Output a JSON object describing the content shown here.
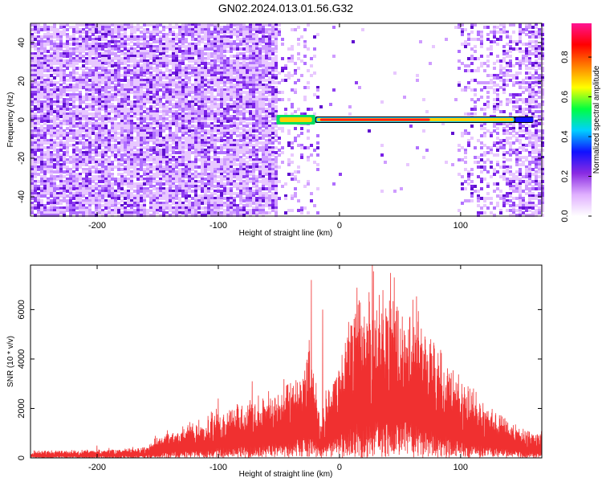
{
  "title": "GN02.2024.013.01.56.G32",
  "chart_data": [
    {
      "type": "heatmap",
      "xlabel": "Height of straight line (km)",
      "ylabel": "Frequency (Hz)",
      "xlim": [
        -255,
        167
      ],
      "ylim": [
        -50,
        50
      ],
      "x_ticks": [
        -200,
        -100,
        0,
        100
      ],
      "y_ticks": [
        -40,
        -20,
        0,
        20,
        40
      ],
      "colorbar": {
        "label": "Normalized spectral amplitude",
        "range": [
          0,
          0.97
        ],
        "ticks": [
          0.0,
          0.2,
          0.4,
          0.6,
          0.8
        ],
        "tick_labels": [
          "0.0",
          "0.2",
          "0.4",
          "0.6",
          "0.8"
        ],
        "colormap": [
          "#ffffff",
          "#e0b0ff",
          "#8a2be2",
          "#1010ff",
          "#00d0ff",
          "#00ff40",
          "#ffff00",
          "#ff8000",
          "#ff0000",
          "#ff1493"
        ]
      },
      "signal_band": {
        "frequency_hz": 0,
        "x_start": -52,
        "x_end": 160,
        "weak_segment": [
          -52,
          -20
        ],
        "strong_segment": [
          -20,
          145
        ]
      },
      "noise_regions": [
        {
          "x_start": -255,
          "x_end": -52,
          "level": "dense"
        },
        {
          "x_start": -52,
          "x_end": -18,
          "level": "sparse"
        },
        {
          "x_start": 95,
          "x_end": 167,
          "level": "moderate"
        }
      ]
    },
    {
      "type": "line",
      "xlabel": "Height of straight line (km)",
      "ylabel": "SNR (10 * v/v)",
      "xlim": [
        -255,
        167
      ],
      "ylim": [
        0,
        7800
      ],
      "x_ticks": [
        -200,
        -100,
        0,
        100
      ],
      "y_ticks": [
        0,
        2000,
        4000,
        6000
      ],
      "color": "#f03030",
      "envelope": {
        "x": [
          -255,
          -200,
          -160,
          -150,
          -120,
          -100,
          -80,
          -60,
          -50,
          -40,
          -30,
          -25,
          -20,
          -15,
          -10,
          0,
          10,
          20,
          30,
          40,
          50,
          60,
          70,
          80,
          90,
          100,
          110,
          120,
          130,
          140,
          150,
          160,
          167
        ],
        "y": [
          250,
          300,
          400,
          800,
          1300,
          1700,
          2000,
          2300,
          2500,
          2700,
          3300,
          4000,
          3000,
          1500,
          2500,
          3800,
          5300,
          6000,
          6300,
          6100,
          6000,
          5600,
          4900,
          4000,
          3300,
          2800,
          2400,
          2000,
          1700,
          1400,
          1150,
          1000,
          950
        ]
      },
      "spikes": [
        {
          "x": -200,
          "y": 500
        },
        {
          "x": -100,
          "y": 2400
        },
        {
          "x": -72,
          "y": 3100
        },
        {
          "x": -23,
          "y": 7200
        },
        {
          "x": -14,
          "y": 6000
        },
        {
          "x": 27,
          "y": 7800
        },
        {
          "x": 45,
          "y": 7300
        }
      ]
    }
  ]
}
